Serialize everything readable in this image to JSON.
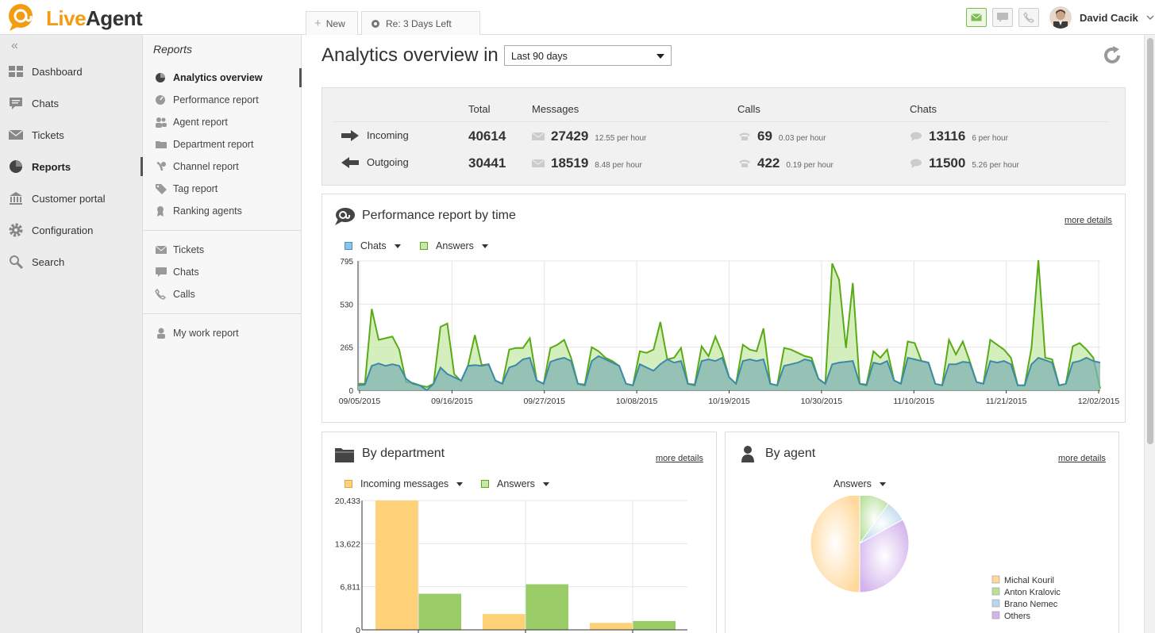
{
  "app": {
    "name_part1": "Live",
    "name_part2": "Agent"
  },
  "topbar": {
    "new_label": "New",
    "trial_label": "Re: 3 Days Left",
    "user_name": "David Cacik",
    "icons": [
      "envelope-icon",
      "chat-bubble-icon",
      "phone-icon"
    ]
  },
  "sidebar": {
    "items": [
      {
        "label": "Dashboard",
        "icon": "dashboard-icon"
      },
      {
        "label": "Chats",
        "icon": "chat-icon"
      },
      {
        "label": "Tickets",
        "icon": "envelope-icon"
      },
      {
        "label": "Reports",
        "icon": "pie-chart-icon",
        "active": true
      },
      {
        "label": "Customer portal",
        "icon": "bank-icon"
      },
      {
        "label": "Configuration",
        "icon": "gear-icon"
      },
      {
        "label": "Search",
        "icon": "search-icon"
      }
    ]
  },
  "subnav": {
    "title": "Reports",
    "group1": [
      {
        "label": "Analytics overview",
        "active": true
      },
      {
        "label": "Performance report"
      },
      {
        "label": "Agent report"
      },
      {
        "label": "Department report"
      },
      {
        "label": "Channel report"
      },
      {
        "label": "Tag report"
      },
      {
        "label": "Ranking agents"
      }
    ],
    "group2": [
      {
        "label": "Tickets"
      },
      {
        "label": "Chats"
      },
      {
        "label": "Calls"
      }
    ],
    "group3": [
      {
        "label": "My work report"
      }
    ]
  },
  "main": {
    "title": "Analytics overview in",
    "range": "Last 90 days"
  },
  "summary": {
    "headers": {
      "total": "Total",
      "messages": "Messages",
      "calls": "Calls",
      "chats": "Chats"
    },
    "incoming": {
      "label": "Incoming",
      "total": "40614",
      "messages": "27429",
      "messages_rate": "12.55 per hour",
      "calls": "69",
      "calls_rate": "0.03 per hour",
      "chats": "13116",
      "chats_rate": "6 per hour"
    },
    "outgoing": {
      "label": "Outgoing",
      "total": "30441",
      "messages": "18519",
      "messages_rate": "8.48 per hour",
      "calls": "422",
      "calls_rate": "0.19 per hour",
      "chats": "11500",
      "chats_rate": "5.26 per hour"
    }
  },
  "perf": {
    "title": "Performance report by time",
    "more": "more details",
    "legend_chats": "Chats",
    "legend_answers": "Answers"
  },
  "dept": {
    "title": "By department",
    "more": "more details",
    "legend_incoming": "Incoming messages",
    "legend_answers": "Answers"
  },
  "agent": {
    "title": "By agent",
    "more": "more details",
    "selector": "Answers"
  },
  "colors": {
    "chats": "#8fb8d6",
    "answers": "#b9e09a",
    "answers_line": "#5aaa16",
    "incoming": "#ffd27a",
    "dept_answers": "#99cc66"
  },
  "chart_data": [
    {
      "type": "area",
      "title": "Performance report by time",
      "ylim": [
        0,
        795
      ],
      "yticks": [
        "795",
        "530",
        "265",
        "0"
      ],
      "xtick_labels": [
        "09/05/2015",
        "09/16/2015",
        "09/27/2015",
        "10/08/2015",
        "10/19/2015",
        "10/30/2015",
        "11/10/2015",
        "11/21/2015",
        "12/02/2015"
      ],
      "series": [
        {
          "name": "Chats",
          "values": [
            30,
            35,
            150,
            165,
            150,
            160,
            150,
            70,
            40,
            30,
            0,
            40,
            140,
            100,
            80,
            60,
            150,
            155,
            150,
            160,
            60,
            40,
            140,
            155,
            190,
            200,
            60,
            40,
            175,
            190,
            200,
            180,
            40,
            30,
            180,
            210,
            190,
            170,
            150,
            40,
            30,
            160,
            140,
            120,
            160,
            190,
            170,
            180,
            40,
            30,
            180,
            190,
            180,
            200,
            80,
            40,
            180,
            190,
            180,
            190,
            40,
            30,
            150,
            160,
            170,
            190,
            180,
            70,
            40,
            160,
            170,
            175,
            180,
            40,
            30,
            170,
            160,
            180,
            60,
            40,
            200,
            190,
            180,
            170,
            40,
            30,
            160,
            160,
            175,
            170,
            50,
            40,
            180,
            170,
            180,
            160,
            30,
            30,
            160,
            200,
            185,
            170,
            30,
            40,
            170,
            180,
            200,
            180,
            170
          ]
        },
        {
          "name": "Answers",
          "values": [
            40,
            40,
            500,
            310,
            320,
            330,
            250,
            50,
            45,
            30,
            20,
            40,
            390,
            410,
            100,
            55,
            150,
            340,
            155,
            160,
            60,
            40,
            250,
            260,
            260,
            320,
            60,
            40,
            260,
            280,
            310,
            200,
            40,
            35,
            265,
            240,
            200,
            180,
            150,
            40,
            30,
            240,
            230,
            250,
            420,
            190,
            200,
            260,
            40,
            35,
            270,
            210,
            330,
            230,
            80,
            40,
            280,
            250,
            240,
            380,
            40,
            30,
            260,
            250,
            230,
            210,
            200,
            70,
            40,
            780,
            680,
            260,
            660,
            40,
            35,
            240,
            200,
            250,
            60,
            40,
            300,
            290,
            180,
            170,
            40,
            30,
            310,
            220,
            300,
            180,
            50,
            40,
            310,
            280,
            250,
            200,
            30,
            30,
            260,
            800,
            200,
            190,
            30,
            40,
            270,
            290,
            250,
            200,
            10
          ]
        }
      ]
    },
    {
      "type": "bar",
      "title": "By department",
      "ylim": [
        0,
        20433
      ],
      "yticks": [
        "20,433",
        "13,622",
        "6,811",
        "0"
      ],
      "series": [
        {
          "name": "Incoming messages",
          "values": [
            20433,
            2500,
            1100
          ]
        },
        {
          "name": "Answers",
          "values": [
            5700,
            7200,
            1400
          ]
        }
      ]
    },
    {
      "type": "pie",
      "title": "By agent",
      "labels": [
        "Michal Kouril",
        "Anton Kralovic",
        "Brano Nemec",
        "Others"
      ],
      "values": [
        50,
        10,
        7,
        33
      ],
      "colors": [
        "#ffd89a",
        "#b9e09a",
        "#b9d6ec",
        "#d3b3ec"
      ]
    }
  ]
}
